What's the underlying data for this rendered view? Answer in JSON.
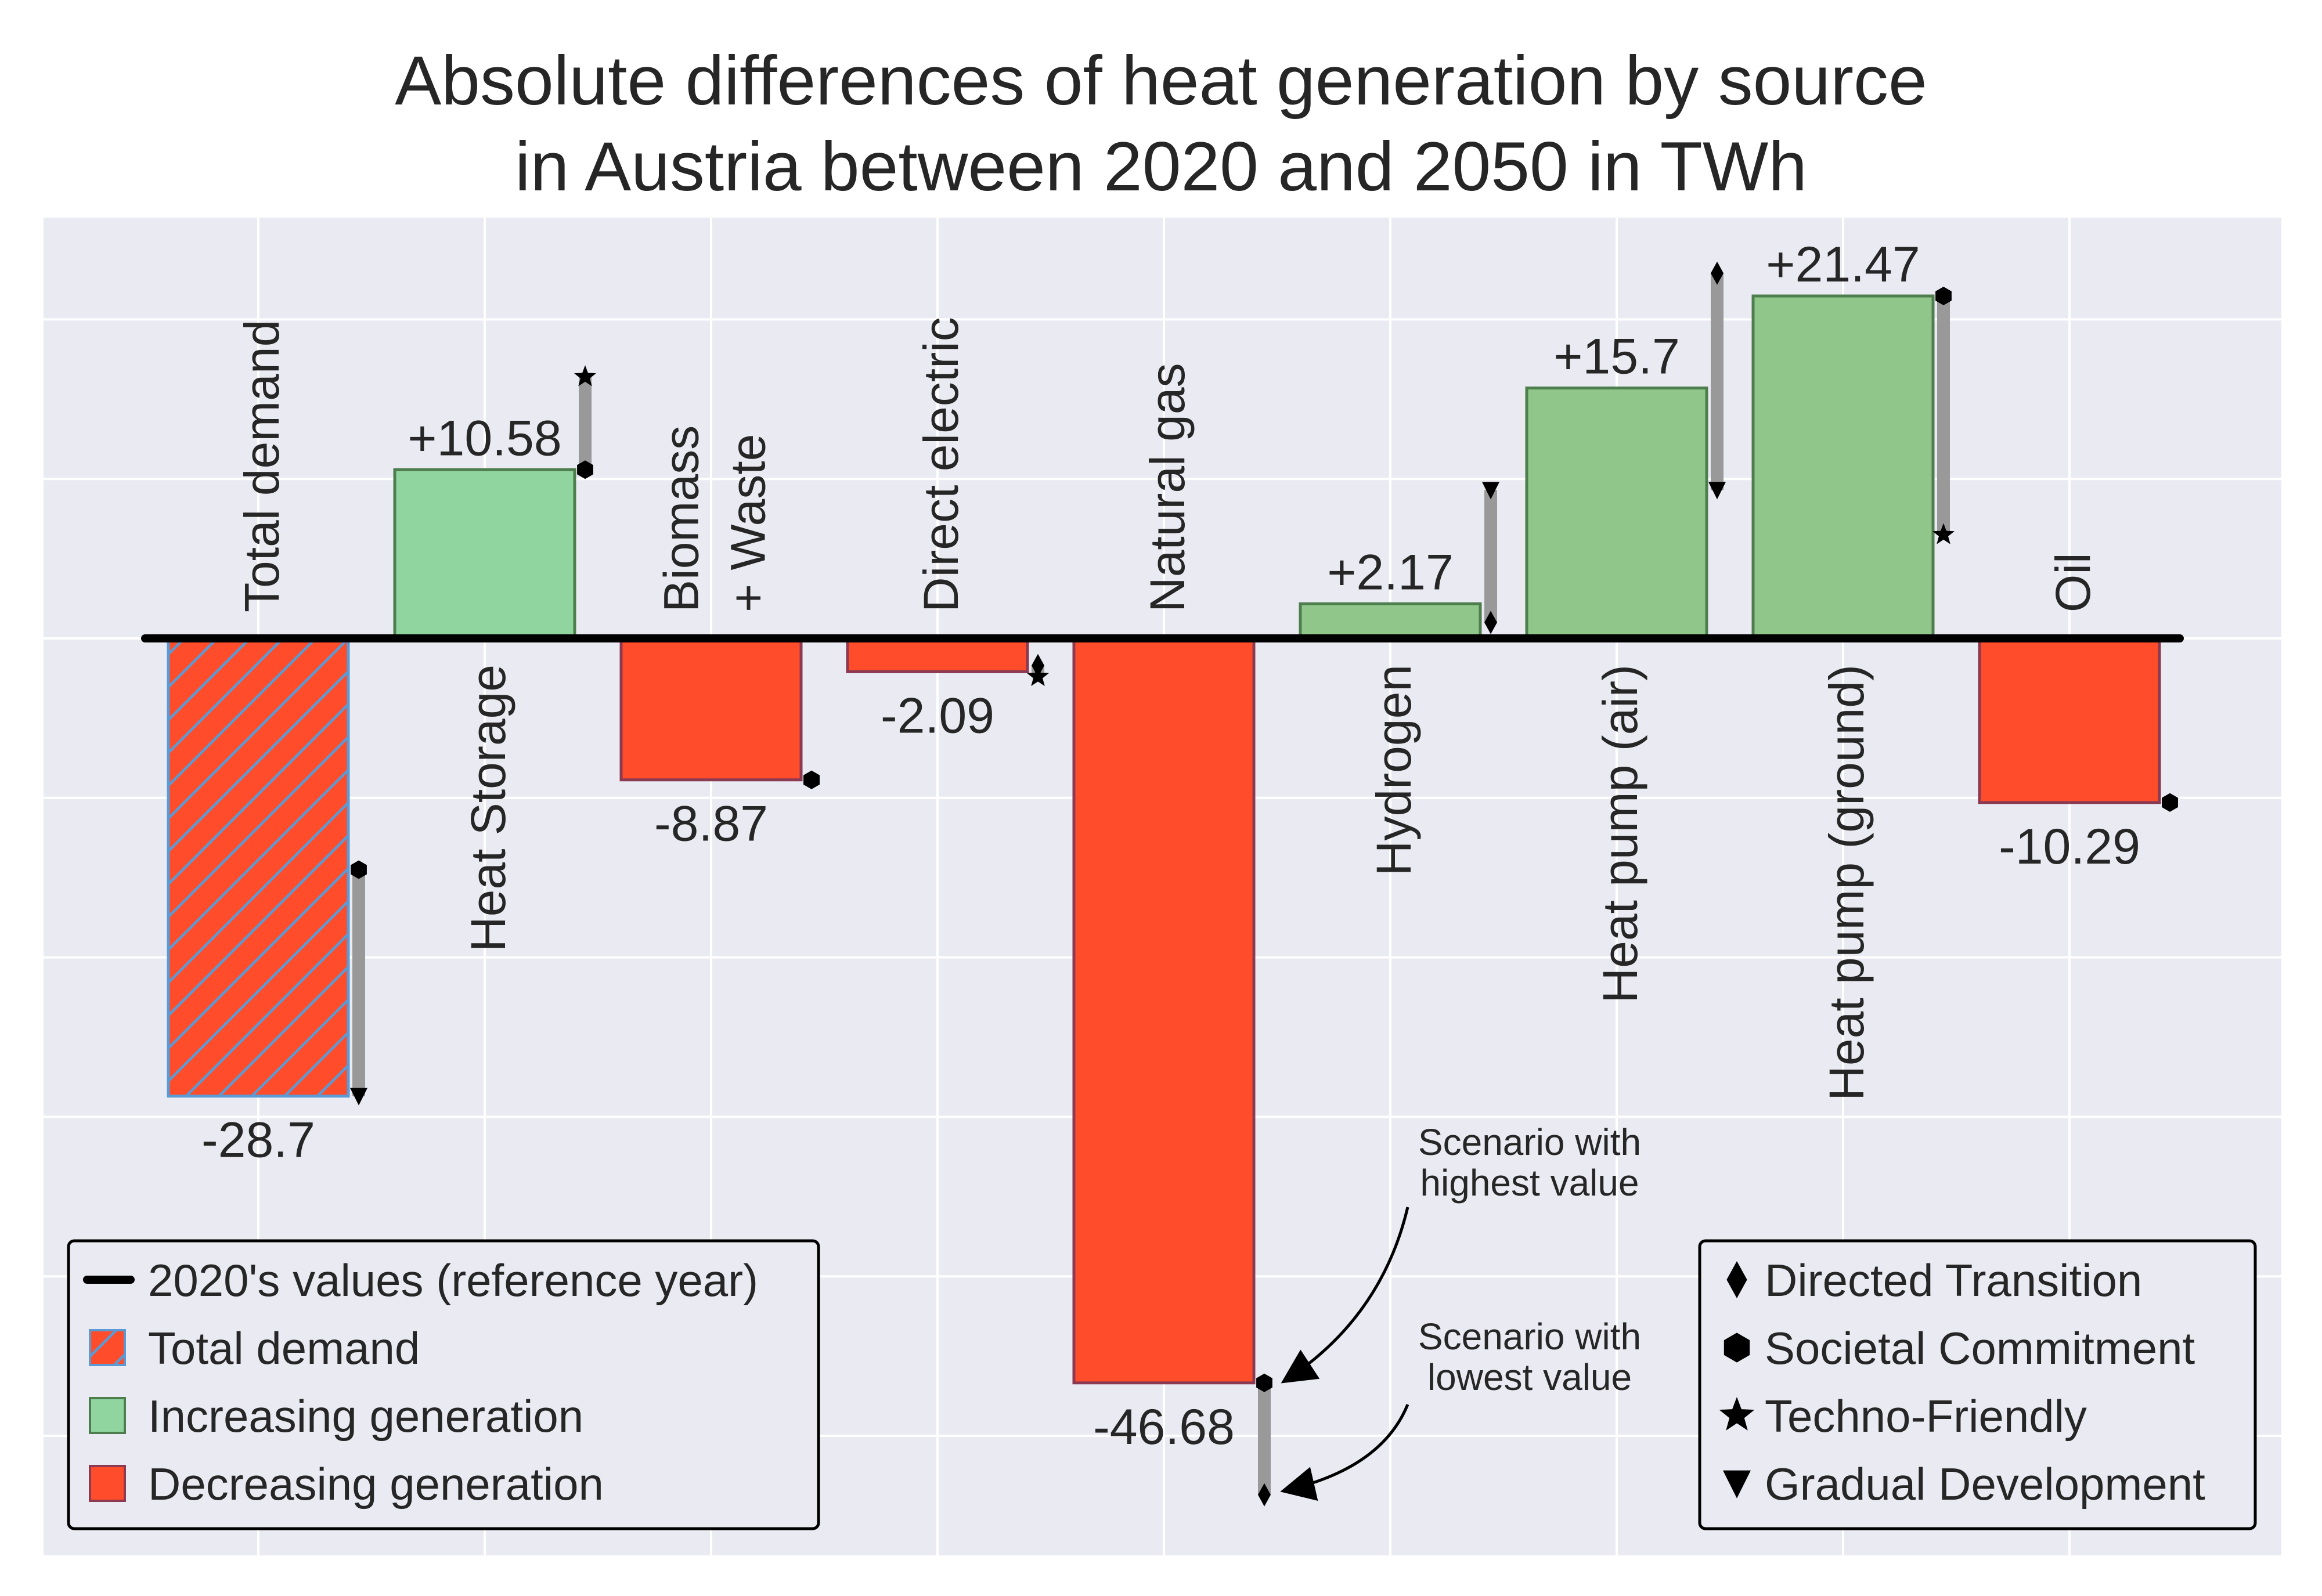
{
  "chart_data": {
    "type": "bar",
    "title": [
      "Absolute differences of heat generation by source",
      "in Austria between 2020 and 2050 in TWh"
    ],
    "xlabel": "",
    "ylabel": "",
    "ylim": [
      -57.5,
      27
    ],
    "grid": true,
    "categories": [
      {
        "label": "Total demand",
        "label_lines": [
          "Total demand"
        ],
        "label_side": "above",
        "value": -28.7,
        "value_label": "-28.7",
        "kind": "total",
        "scenario_marks": {
          "highest": "Societal Commitment",
          "lowest": "Gradual Development"
        }
      },
      {
        "label": "Heat Storage",
        "label_lines": [
          "Heat Storage"
        ],
        "label_side": "below",
        "value": 10.58,
        "value_label": "+10.58",
        "kind": "increase",
        "scenario_marks": {
          "highest": "Techno-Friendly",
          "lowest": "Societal Commitment"
        }
      },
      {
        "label": "Biomass + Waste",
        "label_lines": [
          "Biomass",
          "+ Waste"
        ],
        "label_side": "above",
        "value": -8.87,
        "value_label": "-8.87",
        "kind": "decrease",
        "scenario_marks": {
          "highest": "Societal Commitment",
          "lowest": "Societal Commitment"
        }
      },
      {
        "label": "Direct electric",
        "label_lines": [
          "Direct electric"
        ],
        "label_side": "above",
        "value": -2.09,
        "value_label": "-2.09",
        "kind": "decrease",
        "scenario_marks": {
          "highest": "Directed Transition",
          "lowest": "Techno-Friendly"
        }
      },
      {
        "label": "Natural gas",
        "label_lines": [
          "Natural gas"
        ],
        "label_side": "above",
        "value": -46.68,
        "value_label": "-46.68",
        "kind": "decrease",
        "scenario_marks": {
          "highest": "Societal Commitment",
          "lowest": "Directed Transition"
        }
      },
      {
        "label": "Hydrogen",
        "label_lines": [
          "Hydrogen"
        ],
        "label_side": "below",
        "value": 2.17,
        "value_label": "+2.17",
        "kind": "increase",
        "scenario_marks": {
          "highest": "Gradual Development",
          "lowest": "Directed Transition"
        }
      },
      {
        "label": "Heat pump (air)",
        "label_lines": [
          "Heat pump (air)"
        ],
        "label_side": "below",
        "value": 15.7,
        "value_label": "+15.7",
        "kind": "increase",
        "scenario_marks": {
          "highest": "Directed Transition",
          "lowest": "Gradual Development"
        }
      },
      {
        "label": "Heat pump (ground)",
        "label_lines": [
          "Heat pump (ground)"
        ],
        "label_side": "below",
        "value": 21.47,
        "value_label": "+21.47",
        "kind": "increase",
        "scenario_marks": {
          "highest": "Societal Commitment",
          "lowest": "Techno-Friendly"
        }
      },
      {
        "label": "Oil",
        "label_lines": [
          "Oil"
        ],
        "label_side": "above",
        "value": -10.29,
        "value_label": "-10.29",
        "kind": "decrease",
        "scenario_marks": {
          "highest": "Societal Commitment",
          "lowest": "Societal Commitment"
        }
      }
    ],
    "scenario_ranges": [
      {
        "category": "Total demand",
        "high": -14.5,
        "low": -28.7
      },
      {
        "category": "Heat Storage",
        "high": 16.4,
        "low": 10.58
      },
      {
        "category": "Biomass + Waste",
        "high": -8.87,
        "low": -8.87
      },
      {
        "category": "Direct electric",
        "high": -1.7,
        "low": -2.4
      },
      {
        "category": "Natural gas",
        "high": -46.68,
        "low": -53.7
      },
      {
        "category": "Hydrogen",
        "high": 9.3,
        "low": 1.0
      },
      {
        "category": "Heat pump (air)",
        "high": 22.9,
        "low": 9.3
      },
      {
        "category": "Heat pump (ground)",
        "high": 21.47,
        "low": 6.5
      },
      {
        "category": "Oil",
        "high": -10.29,
        "low": -10.29
      }
    ],
    "colors": {
      "increase": "#90D4A0",
      "increase_alt": "#90C68A",
      "decrease": "#FF4C2B",
      "total_hatch": "#5B9BD5",
      "range": "#999999",
      "reference": "#000000",
      "background": "#EAEAF2",
      "grid": "#FFFFFF"
    },
    "legend_left": {
      "placement": "lower-left",
      "items": [
        {
          "label": "2020's values (reference year)",
          "symbol": "line"
        },
        {
          "label": "Total demand",
          "symbol": "hatched"
        },
        {
          "label": "Increasing generation",
          "symbol": "increase"
        },
        {
          "label": "Decreasing generation",
          "symbol": "decrease"
        }
      ]
    },
    "legend_right": {
      "placement": "lower-right",
      "items": [
        {
          "label": "Directed Transition",
          "marker": "diamond"
        },
        {
          "label": "Societal Commitment",
          "marker": "hexagon"
        },
        {
          "label": "Techno-Friendly",
          "marker": "star"
        },
        {
          "label": "Gradual Development",
          "marker": "triangle-down"
        }
      ]
    },
    "annotations": [
      {
        "lines": [
          "Scenario with",
          "highest value"
        ],
        "points_to": "highest"
      },
      {
        "lines": [
          "Scenario with",
          "lowest value"
        ],
        "points_to": "lowest"
      }
    ]
  }
}
